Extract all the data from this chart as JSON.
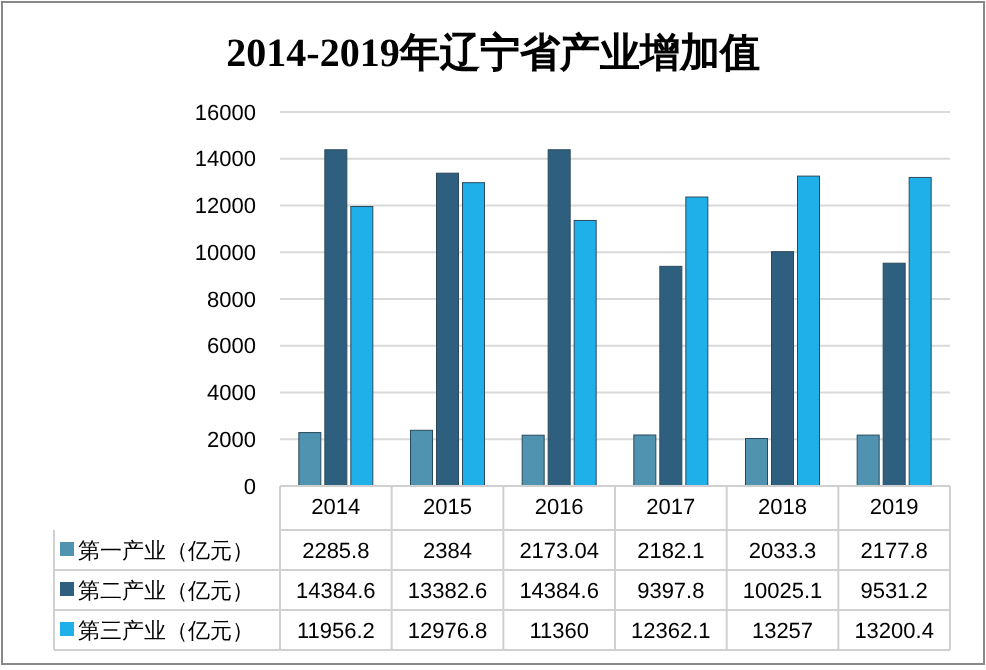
{
  "chart_data": {
    "type": "bar",
    "title": "2014-2019年辽宁省产业增加值",
    "categories": [
      "2014",
      "2015",
      "2016",
      "2017",
      "2018",
      "2019"
    ],
    "series": [
      {
        "name": "第一产业（亿元）",
        "color": "#4f93b0",
        "values": [
          2285.8,
          2384,
          2173.04,
          2182.1,
          2033.3,
          2177.8
        ]
      },
      {
        "name": "第二产业（亿元）",
        "color": "#2f5f7e",
        "values": [
          14384.6,
          13382.6,
          14384.6,
          9397.8,
          10025.1,
          9531.2
        ]
      },
      {
        "name": "第三产业（亿元）",
        "color": "#1fb0ea",
        "values": [
          11956.2,
          12976.8,
          11360,
          12362.1,
          13257,
          13200.4
        ]
      }
    ],
    "ylim": [
      0,
      16000
    ],
    "yticks": [
      0,
      2000,
      4000,
      6000,
      8000,
      10000,
      12000,
      14000,
      16000
    ],
    "grid": "y",
    "legend": "bottom",
    "data_labels": true
  }
}
